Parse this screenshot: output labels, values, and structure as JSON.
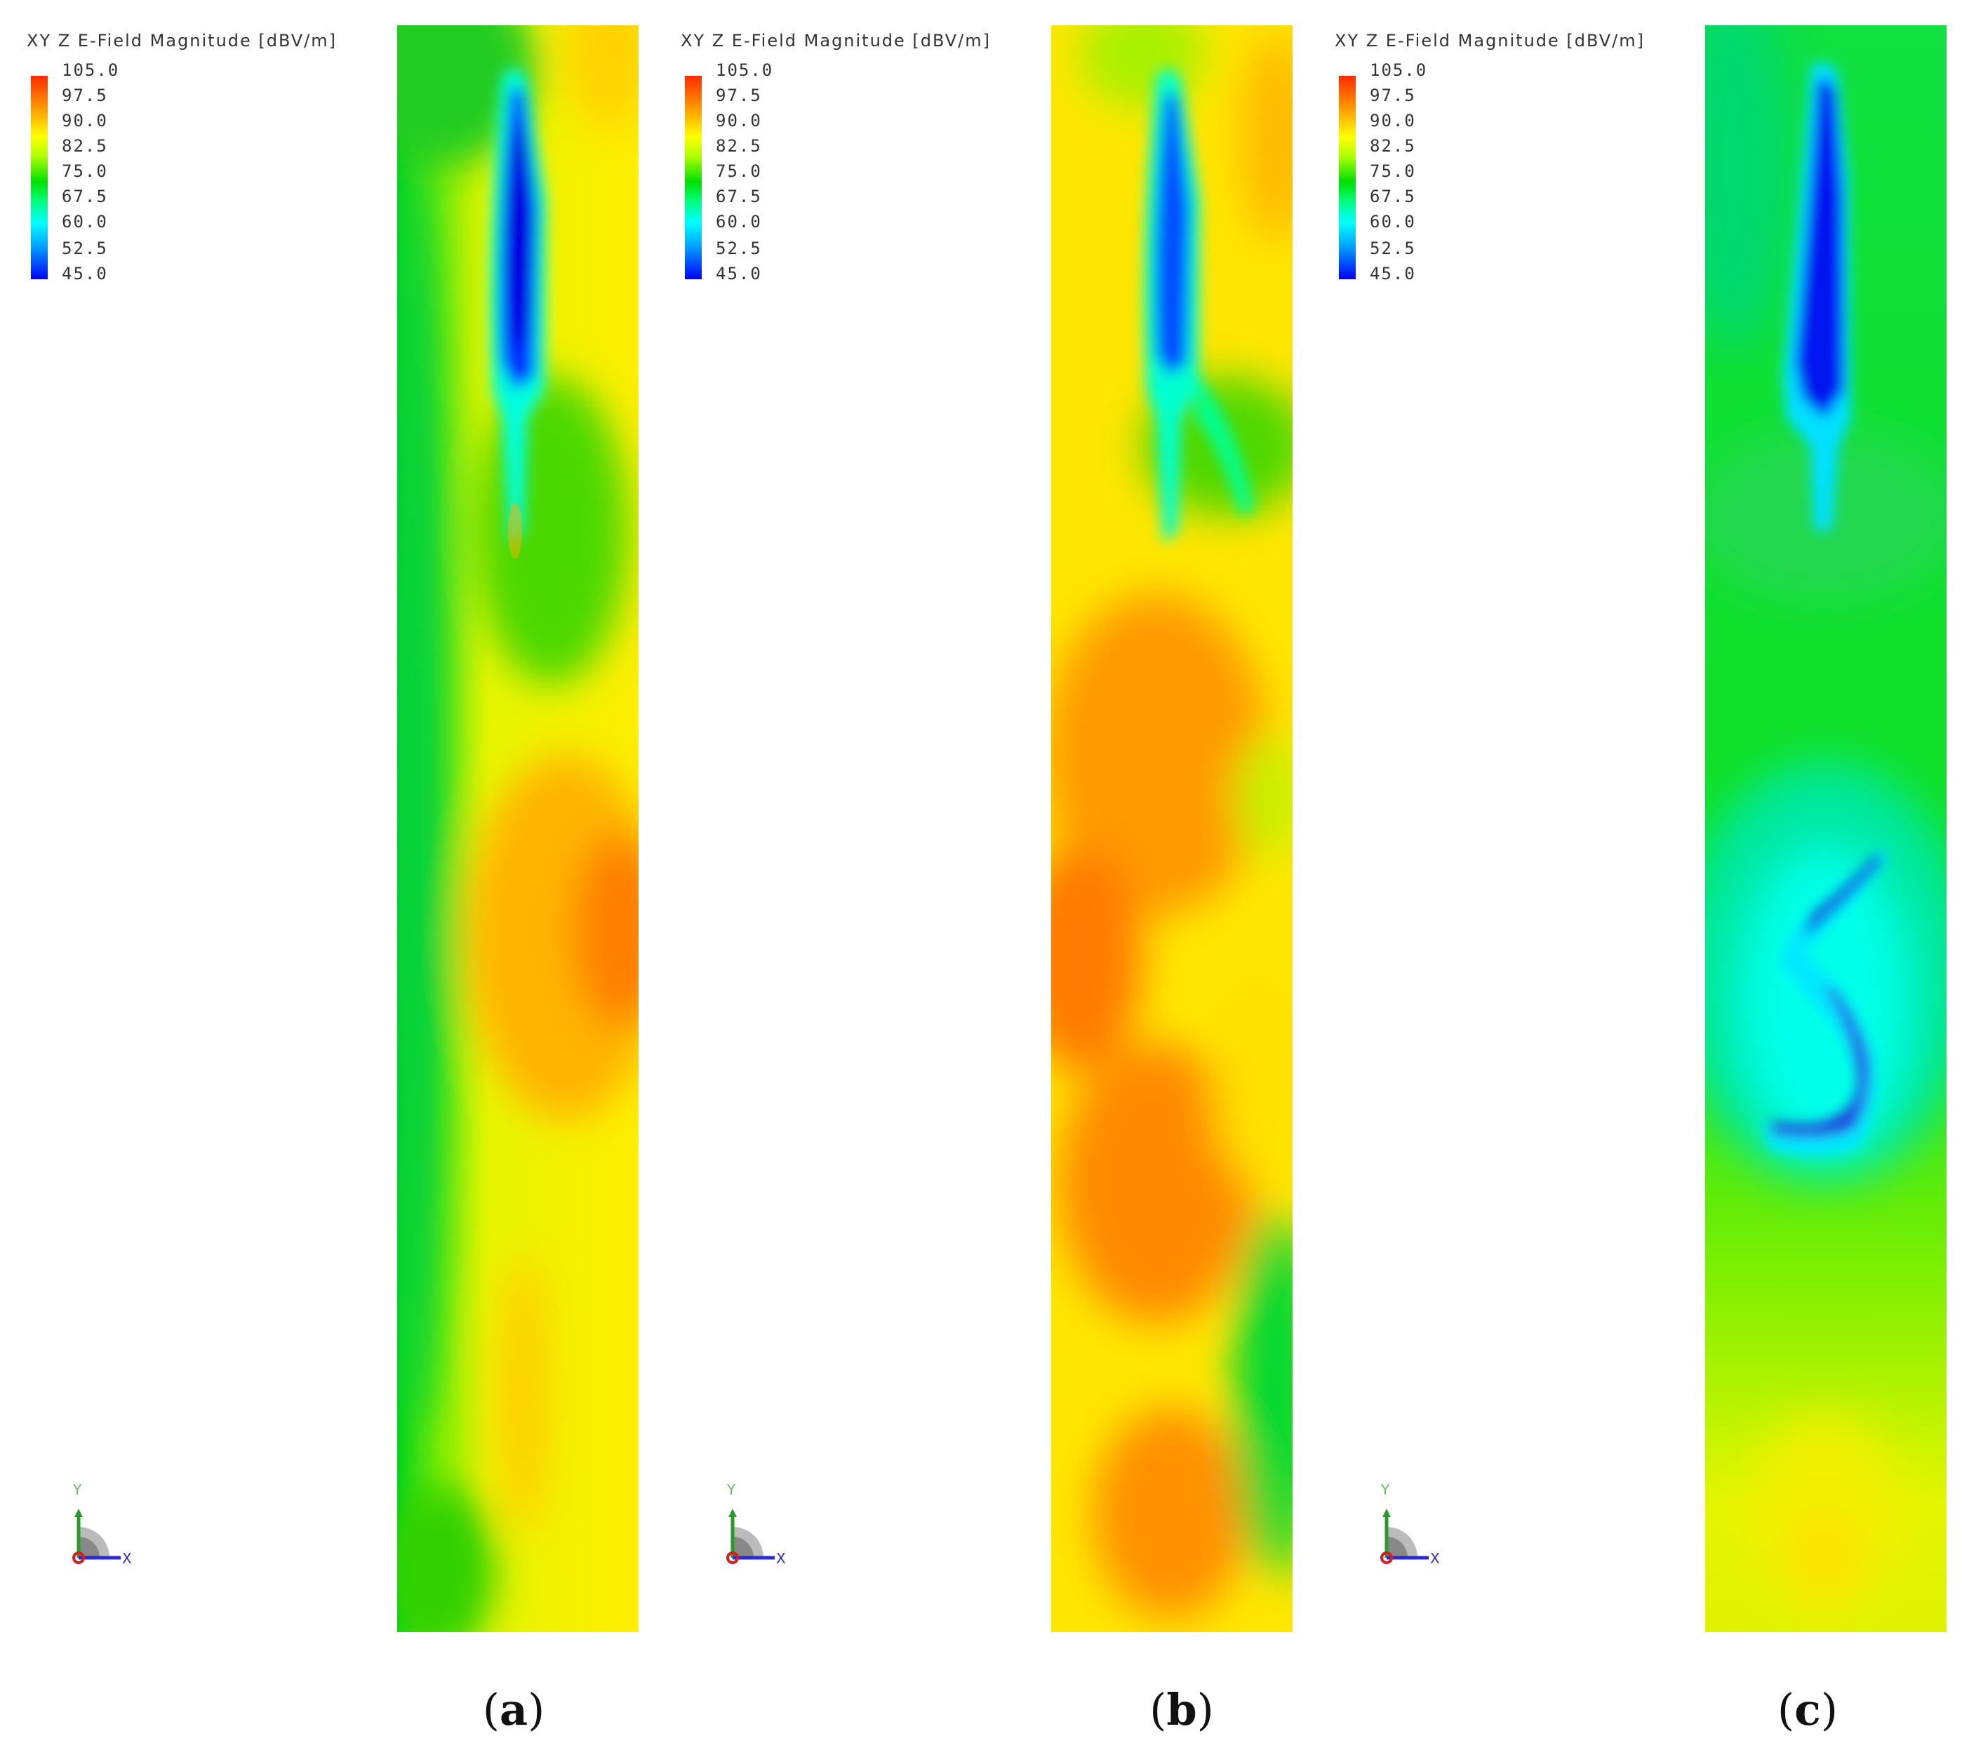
{
  "legend": {
    "title": "XY Z E-Field Magnitude [dBV/m]",
    "unit": "dBV/m",
    "ticks": [
      "105.0",
      "97.5",
      "90.0",
      "82.5",
      "75.0",
      "67.5",
      "60.0",
      "52.5",
      "45.0"
    ],
    "range": [
      45.0,
      105.0
    ],
    "colormap": [
      "#0000ff",
      "#00a0ff",
      "#00ffff",
      "#00ff80",
      "#00e000",
      "#a8ff00",
      "#ffff00",
      "#ff9a00",
      "#ff2a00"
    ]
  },
  "axes_triad": {
    "y_label": "Y",
    "x_label": "X"
  },
  "panels": [
    {
      "id": "a",
      "caption_open": "(",
      "caption_letter": "a",
      "caption_close": ")"
    },
    {
      "id": "b",
      "caption_open": "(",
      "caption_letter": "b",
      "caption_close": ")"
    },
    {
      "id": "c",
      "caption_open": "(",
      "caption_letter": "c",
      "caption_close": ")"
    }
  ]
}
